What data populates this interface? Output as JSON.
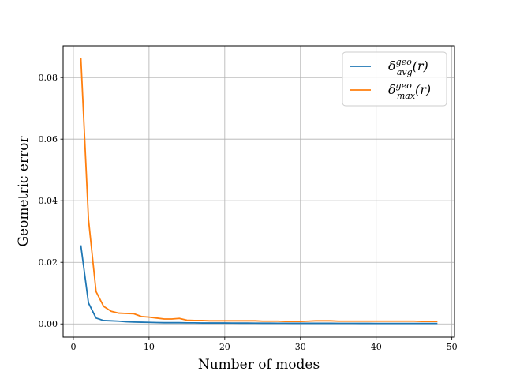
{
  "chart_data": {
    "type": "line",
    "title": "",
    "xlabel": "Number of modes",
    "ylabel": "Geometric error",
    "xlim": [
      -1.35,
      50.35
    ],
    "ylim": [
      -0.0043,
      0.0903
    ],
    "xticks": [
      0,
      10,
      20,
      30,
      40,
      50
    ],
    "yticks": [
      0.0,
      0.02,
      0.04,
      0.06,
      0.08
    ],
    "xtick_labels": [
      "0",
      "10",
      "20",
      "30",
      "40",
      "50"
    ],
    "ytick_labels": [
      "0.00",
      "0.02",
      "0.04",
      "0.06",
      "0.08"
    ],
    "grid": true,
    "legend_position": "top-right",
    "series": [
      {
        "name": "δ^geo_avg(r)",
        "name_main": "δ",
        "name_sup": "geo",
        "name_sub": "avg",
        "name_arg": "(r)",
        "color": "#1f77b4",
        "x": [
          1,
          2,
          3,
          4,
          5,
          6,
          7,
          8,
          9,
          10,
          11,
          12,
          13,
          14,
          15,
          16,
          17,
          18,
          19,
          20,
          21,
          22,
          23,
          24,
          25,
          26,
          27,
          28,
          29,
          30,
          31,
          32,
          33,
          34,
          35,
          36,
          37,
          38,
          39,
          40,
          41,
          42,
          43,
          44,
          45,
          46,
          47,
          48
        ],
        "values": [
          0.0253,
          0.0068,
          0.0019,
          0.0011,
          0.001,
          0.0009,
          0.0007,
          0.0006,
          0.00055,
          0.0005,
          0.00045,
          0.0004,
          0.0004,
          0.0004,
          0.00035,
          0.00035,
          0.0003,
          0.0003,
          0.0003,
          0.0003,
          0.00028,
          0.00027,
          0.00026,
          0.00025,
          0.00024,
          0.00023,
          0.00022,
          0.00021,
          0.0002,
          0.0002,
          0.0002,
          0.0002,
          0.0002,
          0.0002,
          0.00019,
          0.00018,
          0.00018,
          0.00017,
          0.00017,
          0.00016,
          0.00016,
          0.00015,
          0.00015,
          0.00015,
          0.00015,
          0.00015,
          0.00015,
          0.00015
        ]
      },
      {
        "name": "δ^geo_max(r)",
        "name_main": "δ",
        "name_sup": "geo",
        "name_sub": "max",
        "name_arg": "(r)",
        "color": "#ff7f0e",
        "x": [
          1,
          2,
          3,
          4,
          5,
          6,
          7,
          8,
          9,
          10,
          11,
          12,
          13,
          14,
          15,
          16,
          17,
          18,
          19,
          20,
          21,
          22,
          23,
          24,
          25,
          26,
          27,
          28,
          29,
          30,
          31,
          32,
          33,
          34,
          35,
          36,
          37,
          38,
          39,
          40,
          41,
          42,
          43,
          44,
          45,
          46,
          47,
          48
        ],
        "values": [
          0.086,
          0.034,
          0.0105,
          0.0057,
          0.0041,
          0.0035,
          0.0034,
          0.0033,
          0.0024,
          0.0022,
          0.0019,
          0.0016,
          0.0016,
          0.0018,
          0.0012,
          0.0011,
          0.0011,
          0.001,
          0.001,
          0.001,
          0.001,
          0.001,
          0.001,
          0.001,
          0.0009,
          0.0009,
          0.0009,
          0.0008,
          0.0008,
          0.0008,
          0.0009,
          0.001,
          0.001,
          0.001,
          0.0009,
          0.0009,
          0.0009,
          0.0009,
          0.0009,
          0.0009,
          0.0009,
          0.0009,
          0.0009,
          0.0009,
          0.0009,
          0.0008,
          0.0008,
          0.0008
        ]
      }
    ]
  }
}
